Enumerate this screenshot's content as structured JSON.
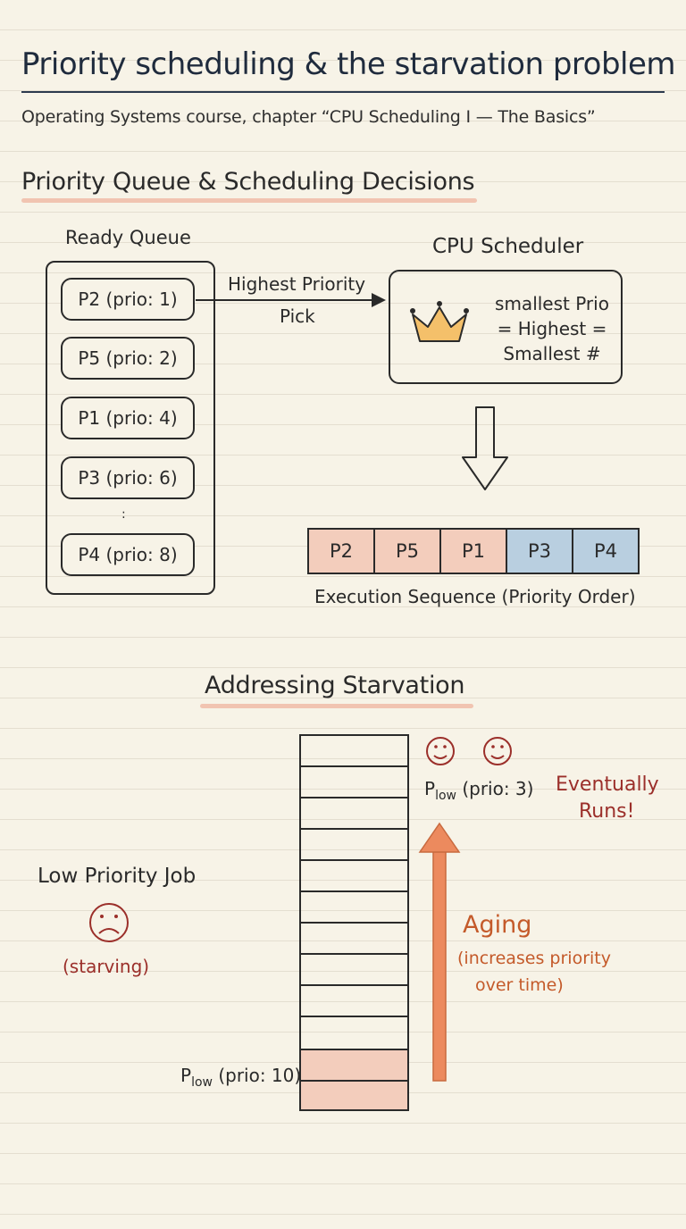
{
  "header": {
    "title": "Priority scheduling & the starvation problem",
    "subtitle": "Operating Systems course, chapter “CPU Scheduling I — The Basics”"
  },
  "section1": {
    "heading": "Priority Queue & Scheduling Decisions",
    "ready_queue_label": "Ready Queue",
    "processes": [
      "P2 (prio: 1)",
      "P5 (prio: 2)",
      "P1 (prio: 4)",
      "P3 (prio: 6)",
      "P4 (prio: 8)"
    ],
    "ellipsis": ":",
    "pick_label_1": "Highest Priority",
    "pick_label_2": "Pick",
    "scheduler_label": "CPU Scheduler",
    "scheduler_note": [
      "smallest Prio",
      "= Highest =",
      "Smallest #"
    ],
    "execution_sequence": [
      "P2",
      "P5",
      "P1",
      "P3",
      "P4"
    ],
    "execution_label": "Execution Sequence (Priority Order)",
    "colors": {
      "high": "#f3cdbc",
      "low": "#b9cfe0"
    }
  },
  "section2": {
    "heading": "Addressing Starvation",
    "low_job_label": "Low Priority Job",
    "starving_label": "(starving)",
    "p_low_letter": "P",
    "p_low_sub": "low",
    "p_low_bottom": " (prio: 10)",
    "p_low_top": " (prio: 3)",
    "aging_label": "Aging",
    "aging_note_1": "(increases priority",
    "aging_note_2": "over time)",
    "eventually_1": "Eventually",
    "eventually_2": "Runs!",
    "icons": [
      "crown-icon",
      "sad-face-icon",
      "smiley-face-icon",
      "up-arrow-icon",
      "down-arrow-icon"
    ],
    "colors": {
      "aging": "#ec8a5e",
      "red_text": "#9b2f2a"
    }
  }
}
